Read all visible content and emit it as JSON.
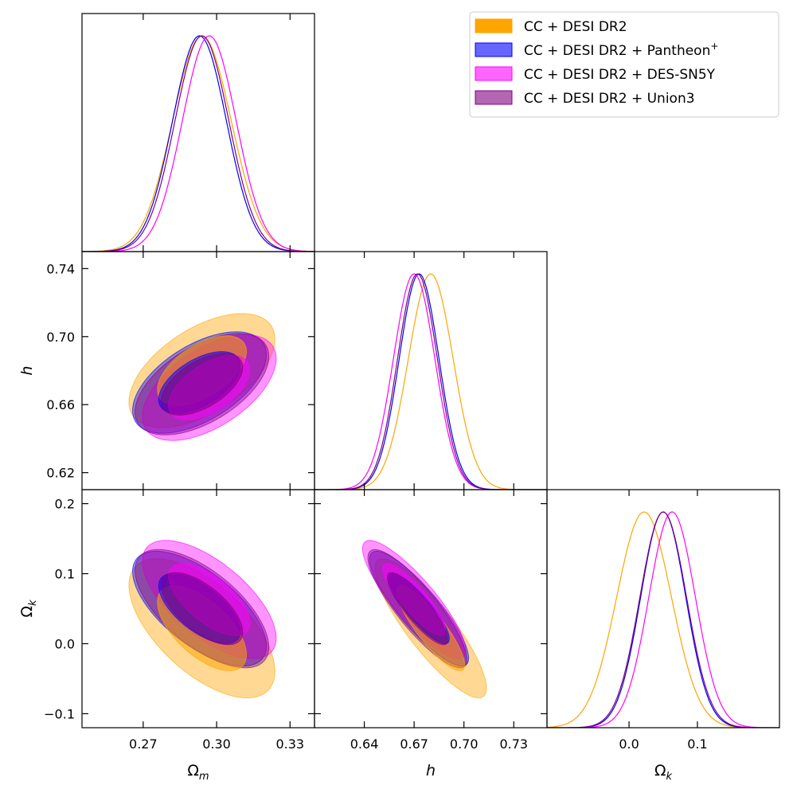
{
  "chart_data": {
    "type": "corner-plot",
    "parameters": [
      {
        "key": "Om",
        "label": "Ω",
        "sub": "m",
        "range": [
          0.245,
          0.34
        ],
        "ticks": [
          0.27,
          0.3,
          0.33
        ],
        "tick_labels": [
          "0.27",
          "0.30",
          "0.33"
        ]
      },
      {
        "key": "h",
        "label": "h",
        "sub": "",
        "range": [
          0.61,
          0.75
        ],
        "ticks": [
          0.64,
          0.67,
          0.7,
          0.73
        ],
        "tick_labels": [
          "0.64",
          "0.67",
          "0.70",
          "0.73"
        ],
        "ticks_y": [
          0.62,
          0.66,
          0.7,
          0.74
        ],
        "tick_labels_y": [
          "0.62",
          "0.66",
          "0.70",
          "0.74"
        ]
      },
      {
        "key": "Ok",
        "label": "Ω",
        "sub": "k",
        "range": [
          -0.12,
          0.22
        ],
        "ticks": [
          0.0,
          0.1
        ],
        "tick_labels": [
          "0.0",
          "0.1"
        ],
        "ticks_y": [
          -0.1,
          0.0,
          0.1,
          0.2
        ],
        "tick_labels_y": [
          "−0.1",
          "0.0",
          "0.1",
          "0.2"
        ]
      }
    ],
    "series": [
      {
        "name": "CC + DESI DR2",
        "sup": "",
        "color": "#ffa500",
        "mean": {
          "Om": 0.294,
          "h": 0.68,
          "Ok": 0.022
        },
        "sigma": {
          "Om": 0.012,
          "h": 0.0135,
          "Ok": 0.04
        },
        "corr": {
          "Om_h": 0.55,
          "Om_Ok": -0.62,
          "h_Ok": -0.86
        }
      },
      {
        "name": "CC + DESI DR2 + Pantheon",
        "sup": "+",
        "color": "#0000ff",
        "mean": {
          "Om": 0.293,
          "h": 0.673,
          "Ok": 0.05
        },
        "sigma": {
          "Om": 0.011,
          "h": 0.012,
          "Ok": 0.033
        },
        "corr": {
          "Om_h": 0.55,
          "Om_Ok": -0.65,
          "h_Ok": -0.86
        }
      },
      {
        "name": "CC + DESI DR2 + DES-SN5Y",
        "sup": "",
        "color": "#ff00ff",
        "mean": {
          "Om": 0.297,
          "h": 0.67,
          "Ok": 0.063
        },
        "sigma": {
          "Om": 0.011,
          "h": 0.0125,
          "Ok": 0.034
        },
        "corr": {
          "Om_h": 0.55,
          "Om_Ok": -0.65,
          "h_Ok": -0.86
        }
      },
      {
        "name": "CC + DESI DR2 + Union3",
        "sup": "",
        "color": "#800080",
        "mean": {
          "Om": 0.294,
          "h": 0.672,
          "Ok": 0.05
        },
        "sigma": {
          "Om": 0.011,
          "h": 0.012,
          "Ok": 0.034
        },
        "corr": {
          "Om_h": 0.55,
          "Om_Ok": -0.65,
          "h_Ok": -0.86
        }
      }
    ],
    "legend_position": "top-right",
    "contour_levels": [
      "68%",
      "95%"
    ]
  }
}
